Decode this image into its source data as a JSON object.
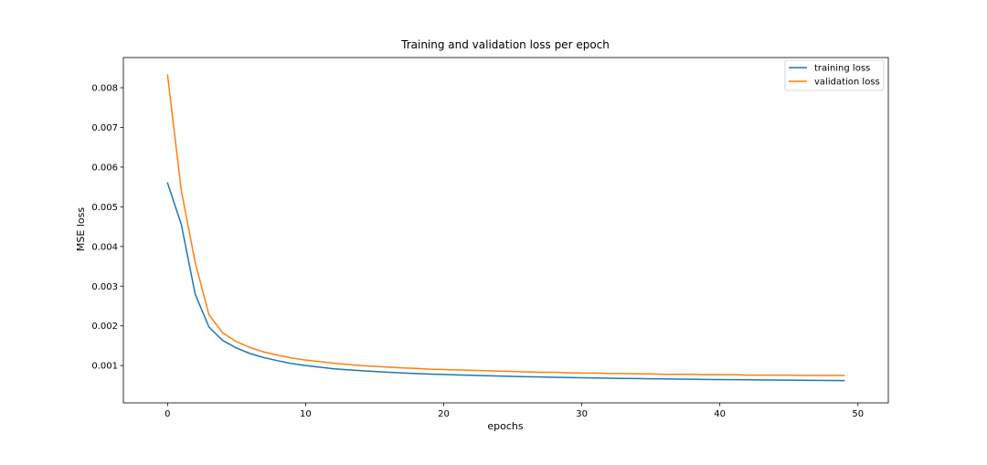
{
  "chart_data": {
    "type": "line",
    "title": "Training and validation loss per epoch",
    "xlabel": "epochs",
    "ylabel": "MSE loss",
    "xlim": [
      -3.2,
      52.2
    ],
    "ylim": [
      6e-05,
      0.00876
    ],
    "xticks": [
      0,
      10,
      20,
      30,
      40,
      50
    ],
    "yticks": [
      0.001,
      0.002,
      0.003,
      0.004,
      0.005,
      0.006,
      0.007,
      0.008
    ],
    "xtick_labels": [
      "0",
      "10",
      "20",
      "30",
      "40",
      "50"
    ],
    "ytick_labels": [
      "0.001",
      "0.002",
      "0.003",
      "0.004",
      "0.005",
      "0.006",
      "0.007",
      "0.008"
    ],
    "grid": false,
    "legend_position": "top-right",
    "series": [
      {
        "name": "training loss",
        "color": "#1f77b4",
        "x": [
          0,
          1,
          2,
          3,
          4,
          5,
          6,
          7,
          8,
          9,
          10,
          11,
          12,
          13,
          14,
          15,
          16,
          17,
          18,
          19,
          20,
          21,
          22,
          23,
          24,
          25,
          26,
          27,
          28,
          29,
          30,
          31,
          32,
          33,
          34,
          35,
          36,
          37,
          38,
          39,
          40,
          41,
          42,
          43,
          44,
          45,
          46,
          47,
          48,
          49
        ],
        "y": [
          0.0056,
          0.00455,
          0.0028,
          0.00197,
          0.00163,
          0.00144,
          0.0013,
          0.0012,
          0.00112,
          0.00105,
          0.001,
          0.00096,
          0.00092,
          0.000895,
          0.00087,
          0.00085,
          0.00083,
          0.000815,
          0.0008,
          0.000785,
          0.000775,
          0.000765,
          0.000755,
          0.000745,
          0.000735,
          0.000728,
          0.00072,
          0.000712,
          0.000705,
          0.0007,
          0.000693,
          0.000688,
          0.000682,
          0.000677,
          0.000672,
          0.000668,
          0.000663,
          0.000659,
          0.000655,
          0.000651,
          0.000648,
          0.000644,
          0.000641,
          0.000638,
          0.000635,
          0.000632,
          0.000629,
          0.000626,
          0.000623,
          0.00062
        ]
      },
      {
        "name": "validation loss",
        "color": "#ff7f0e",
        "x": [
          0,
          1,
          2,
          3,
          4,
          5,
          6,
          7,
          8,
          9,
          10,
          11,
          12,
          13,
          14,
          15,
          16,
          17,
          18,
          19,
          20,
          21,
          22,
          23,
          24,
          25,
          26,
          27,
          28,
          29,
          30,
          31,
          32,
          33,
          34,
          35,
          36,
          37,
          38,
          39,
          40,
          41,
          42,
          43,
          44,
          45,
          46,
          47,
          48,
          49
        ],
        "y": [
          0.00832,
          0.0054,
          0.0036,
          0.00228,
          0.00182,
          0.0016,
          0.00145,
          0.00134,
          0.00126,
          0.00119,
          0.00114,
          0.0011,
          0.00106,
          0.00103,
          0.001,
          0.00098,
          0.00096,
          0.00094,
          0.00093,
          0.00091,
          0.0009,
          0.00089,
          0.00088,
          0.00087,
          0.00086,
          0.00085,
          0.00084,
          0.00083,
          0.00083,
          0.00082,
          0.00081,
          0.00081,
          0.0008,
          0.0008,
          0.00079,
          0.00079,
          0.00078,
          0.00078,
          0.00078,
          0.00077,
          0.00077,
          0.00077,
          0.00076,
          0.00076,
          0.00076,
          0.00076,
          0.00075,
          0.00075,
          0.00075,
          0.00075
        ]
      }
    ]
  }
}
